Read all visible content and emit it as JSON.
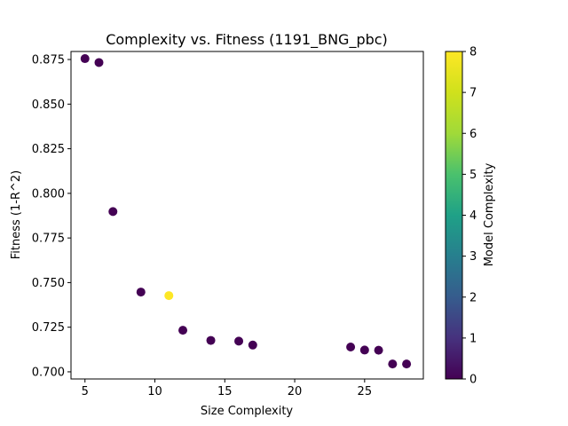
{
  "chart_data": {
    "type": "scatter",
    "title": "Complexity vs. Fitness (1191_BNG_pbc)",
    "xlabel": "Size Complexity",
    "ylabel": "Fitness (1-R^2)",
    "xlim": [
      4,
      29.2
    ],
    "ylim": [
      0.696,
      0.8795
    ],
    "xticks": [
      5,
      10,
      15,
      20,
      25
    ],
    "xtick_labels": [
      "5",
      "10",
      "15",
      "20",
      "25"
    ],
    "yticks": [
      0.7,
      0.725,
      0.75,
      0.775,
      0.8,
      0.825,
      0.85,
      0.875
    ],
    "ytick_labels": [
      "0.700",
      "0.725",
      "0.750",
      "0.775",
      "0.800",
      "0.825",
      "0.850",
      "0.875"
    ],
    "grid": false,
    "colormap": "viridis",
    "points": [
      {
        "x": 5,
        "y": 0.8755,
        "c": 0
      },
      {
        "x": 6,
        "y": 0.8733,
        "c": 0
      },
      {
        "x": 7,
        "y": 0.7898,
        "c": 0
      },
      {
        "x": 9,
        "y": 0.7447,
        "c": 0
      },
      {
        "x": 11,
        "y": 0.7427,
        "c": 8
      },
      {
        "x": 12,
        "y": 0.7233,
        "c": 0
      },
      {
        "x": 14,
        "y": 0.7176,
        "c": 0
      },
      {
        "x": 16,
        "y": 0.7172,
        "c": 0
      },
      {
        "x": 17,
        "y": 0.715,
        "c": 0
      },
      {
        "x": 24,
        "y": 0.7139,
        "c": 0
      },
      {
        "x": 25,
        "y": 0.7122,
        "c": 0
      },
      {
        "x": 26,
        "y": 0.7121,
        "c": 0
      },
      {
        "x": 27,
        "y": 0.7044,
        "c": 0
      },
      {
        "x": 28,
        "y": 0.7044,
        "c": 0
      }
    ],
    "colorbar": {
      "label": "Model Complexity",
      "range": [
        0,
        8
      ],
      "ticks": [
        0,
        1,
        2,
        3,
        4,
        5,
        6,
        7,
        8
      ],
      "tick_labels": [
        "0",
        "1",
        "2",
        "3",
        "4",
        "5",
        "6",
        "7",
        "8"
      ]
    }
  }
}
